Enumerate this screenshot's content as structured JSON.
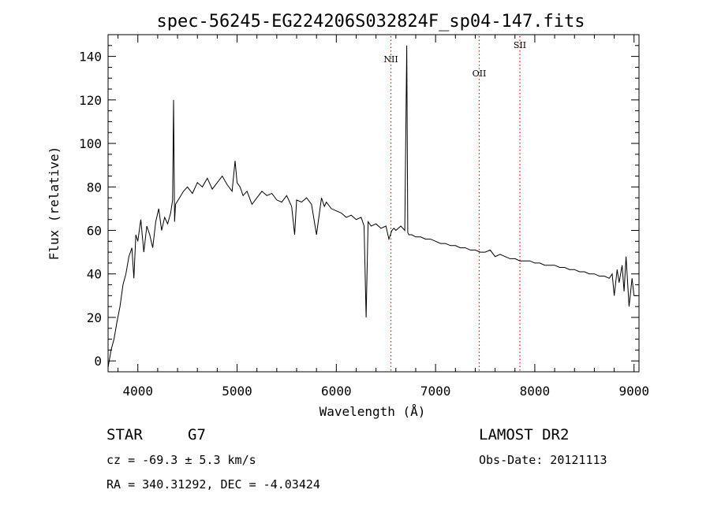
{
  "chart_data": {
    "type": "line",
    "title": "spec-56245-EG224206S032824F_sp04-147.fits",
    "xlabel": "Wavelength (Å)",
    "ylabel": "Flux (relative)",
    "xlim": [
      3700,
      9050
    ],
    "ylim": [
      -5,
      150
    ],
    "x_ticks": [
      4000,
      5000,
      6000,
      7000,
      8000,
      9000
    ],
    "y_ticks": [
      0,
      20,
      40,
      60,
      80,
      100,
      120,
      140
    ],
    "grid": false,
    "line_color": "#000000",
    "marker_color": "#ff0000",
    "spectral_lines": [
      {
        "label": "NII",
        "wavelength": 6550
      },
      {
        "label": "OII",
        "wavelength": 7440
      },
      {
        "label": "SII",
        "wavelength": 7850
      }
    ],
    "series": [
      {
        "x": [
          3700,
          3730,
          3760,
          3790,
          3820,
          3850,
          3880,
          3910,
          3940,
          3960,
          3980,
          4000,
          4030,
          4060,
          4090,
          4120,
          4150,
          4180,
          4210,
          4240,
          4270,
          4300,
          4330,
          4350,
          4360,
          4370,
          4380,
          4420,
          4460,
          4500,
          4550,
          4600,
          4650,
          4700,
          4750,
          4800,
          4850,
          4900,
          4950,
          4980,
          5000,
          5030,
          5060,
          5100,
          5150,
          5200,
          5250,
          5300,
          5350,
          5400,
          5450,
          5500,
          5550,
          5580,
          5600,
          5650,
          5700,
          5750,
          5800,
          5850,
          5880,
          5900,
          5950,
          6000,
          6050,
          6100,
          6150,
          6200,
          6250,
          6280,
          6300,
          6320,
          6350,
          6400,
          6450,
          6500,
          6530,
          6560,
          6580,
          6600,
          6650,
          6690,
          6710,
          6720,
          6730,
          6760,
          6800,
          6850,
          6900,
          6950,
          7000,
          7050,
          7100,
          7150,
          7200,
          7250,
          7300,
          7350,
          7400,
          7450,
          7500,
          7550,
          7600,
          7650,
          7700,
          7750,
          7800,
          7850,
          7900,
          7950,
          8000,
          8050,
          8100,
          8150,
          8200,
          8250,
          8300,
          8350,
          8400,
          8450,
          8500,
          8550,
          8600,
          8650,
          8700,
          8750,
          8780,
          8800,
          8830,
          8850,
          8880,
          8900,
          8920,
          8950,
          8980,
          9000,
          9030
        ],
        "values": [
          -3,
          5,
          10,
          18,
          25,
          35,
          40,
          48,
          52,
          38,
          58,
          55,
          65,
          50,
          62,
          58,
          52,
          64,
          70,
          60,
          66,
          63,
          68,
          74,
          120,
          64,
          72,
          75,
          78,
          80,
          77,
          82,
          80,
          84,
          79,
          82,
          85,
          81,
          78,
          92,
          82,
          80,
          76,
          78,
          72,
          75,
          78,
          76,
          77,
          74,
          73,
          76,
          71,
          58,
          74,
          73,
          75,
          72,
          58,
          75,
          71,
          73,
          70,
          69,
          68,
          66,
          67,
          65,
          66,
          62,
          20,
          64,
          62,
          63,
          61,
          62,
          56,
          60,
          61,
          60,
          62,
          60,
          145,
          59,
          58,
          58,
          57,
          57,
          56,
          56,
          55,
          54,
          54,
          53,
          53,
          52,
          52,
          51,
          51,
          50,
          50,
          51,
          48,
          49,
          48,
          47,
          47,
          46,
          46,
          46,
          45,
          45,
          44,
          44,
          44,
          43,
          43,
          42,
          42,
          41,
          41,
          40,
          40,
          39,
          39,
          38,
          40,
          30,
          42,
          36,
          44,
          32,
          48,
          25,
          38,
          30,
          30
        ]
      }
    ]
  },
  "footer": {
    "object_class": "STAR",
    "subclass": "G7",
    "cz": "cz = -69.3 ± 5.3 km/s",
    "radec": "RA = 340.31292, DEC =  -4.03424",
    "survey": "LAMOST DR2",
    "obs_date": "Obs-Date: 20121113"
  }
}
